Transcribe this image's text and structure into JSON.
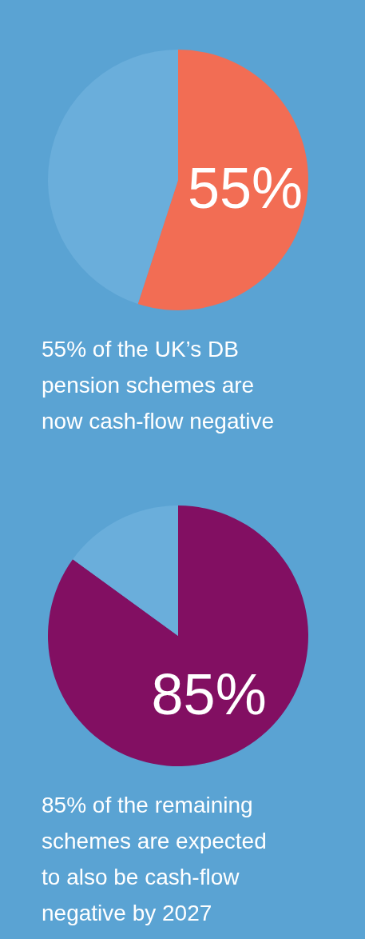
{
  "chart_data": [
    {
      "type": "pie",
      "categories": [
        null,
        null
      ],
      "values": [
        55,
        45
      ],
      "colors": [
        "#f26d54",
        "#6aaedb"
      ],
      "value_labels": [
        "55%",
        null
      ],
      "annotations": [
        "55% of the UK’s DB pension schemes are now cash-flow negative"
      ]
    },
    {
      "type": "pie",
      "categories": [
        null,
        null
      ],
      "values": [
        85,
        15
      ],
      "colors": [
        "#820f62",
        "#6aaedb"
      ],
      "value_labels": [
        "85%",
        null
      ],
      "annotations": [
        "85% of the remaining schemes are expected to also be cash-flow negative by 2027"
      ]
    }
  ]
}
